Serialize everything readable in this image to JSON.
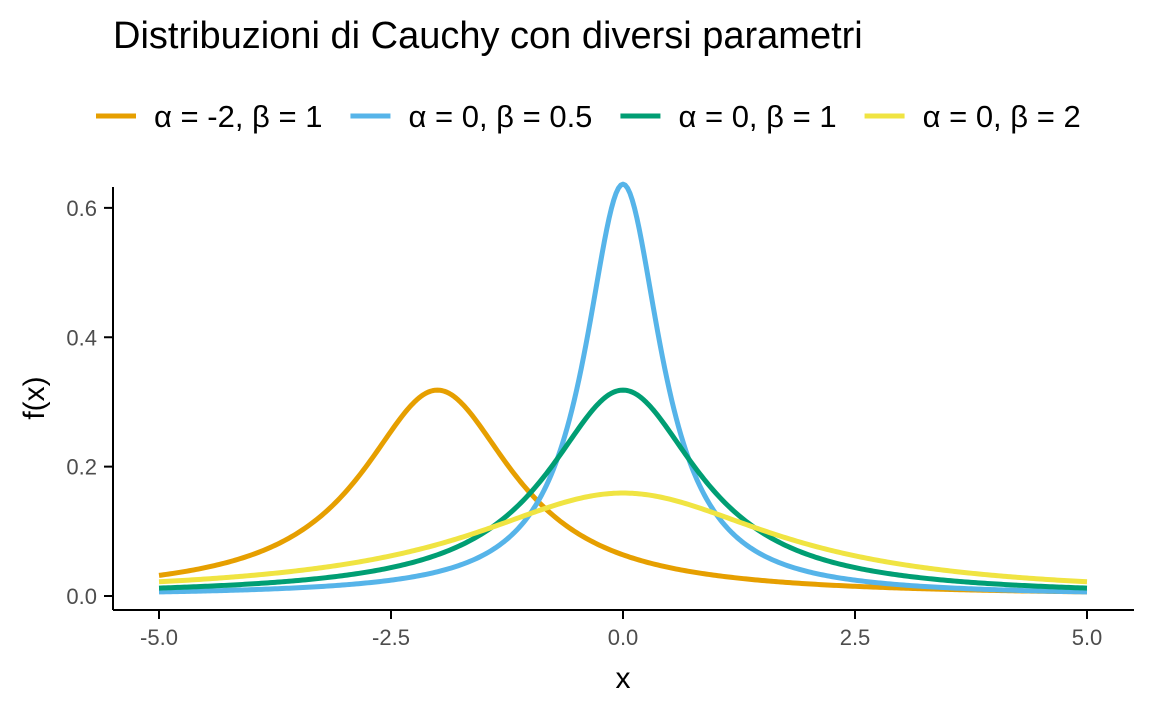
{
  "chart_data": {
    "type": "line",
    "title": "Distribuzioni di Cauchy con diversi parametri",
    "xlabel": "x",
    "ylabel": "f(x)",
    "xlim": [
      -5,
      5
    ],
    "ylim": [
      0,
      0.64
    ],
    "x_ticks": [
      "-5.0",
      "-2.5",
      "0.0",
      "2.5",
      "5.0"
    ],
    "y_ticks": [
      "0.0",
      "0.2",
      "0.4",
      "0.6"
    ],
    "legend_position": "top",
    "grid": false,
    "series": [
      {
        "name": "α = -2, β = 1",
        "alpha": -2,
        "beta": 1,
        "color": "#E69F00"
      },
      {
        "name": "α = 0, β = 0.5",
        "alpha": 0,
        "beta": 0.5,
        "color": "#56B4E9"
      },
      {
        "name": "α = 0, β = 1",
        "alpha": 0,
        "beta": 1,
        "color": "#009E73"
      },
      {
        "name": "α = 0, β = 2",
        "alpha": 0,
        "beta": 2,
        "color": "#F0E442"
      }
    ]
  }
}
